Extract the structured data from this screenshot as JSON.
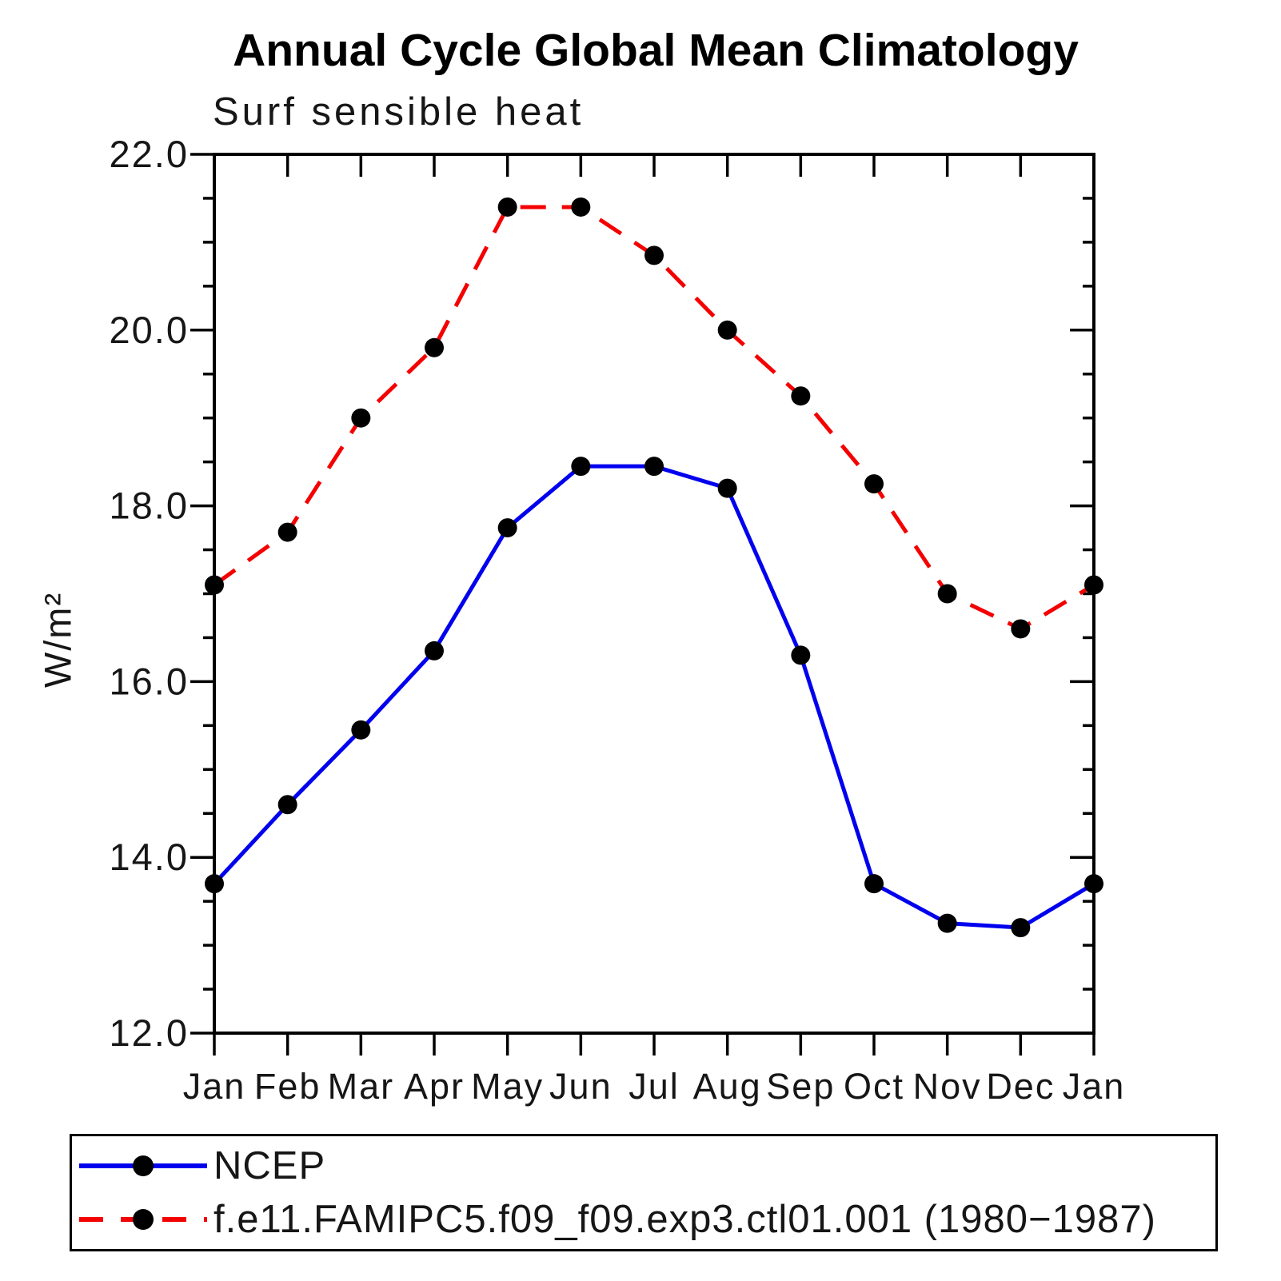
{
  "header": {
    "title": "Annual Cycle Global Mean Climatology",
    "subtitle": "Surf sensible heat"
  },
  "y_axis": {
    "title": "W/m²",
    "min": 12.0,
    "max": 22.0,
    "major_tick_step": 2.0,
    "minor_tick_step": 0.5,
    "major_tick_labels": [
      "12.0",
      "14.0",
      "16.0",
      "18.0",
      "20.0",
      "22.0"
    ]
  },
  "x_axis": {
    "tick_labels": [
      "Jan",
      "Feb",
      "Mar",
      "Apr",
      "May",
      "Jun",
      "Jul",
      "Aug",
      "Sep",
      "Oct",
      "Nov",
      "Dec",
      "Jan"
    ]
  },
  "legend": {
    "items": [
      {
        "label": "NCEP",
        "color": "#0000ee",
        "line_style": "solid",
        "marker": "filled-circle"
      },
      {
        "label": "f.e11.FAMIPC5.f09_f09.exp3.ctl01.001 (1980−1987)",
        "color": "#f40000",
        "line_style": "dashed",
        "marker": "filled-circle"
      }
    ]
  },
  "colors": {
    "ncep_line": "#0000ee",
    "model_line": "#f40000",
    "marker": "#000000",
    "axis": "#000000",
    "text": "#161616"
  },
  "chart_data": {
    "type": "line",
    "title": "Annual Cycle Global Mean Climatology",
    "subtitle": "Surf sensible heat",
    "xlabel": "",
    "ylabel": "W/m²",
    "ylim": [
      12.0,
      22.0
    ],
    "y_major_step": 2.0,
    "y_minor_step": 0.5,
    "grid": false,
    "legend_position": "bottom",
    "categories": [
      "Jan",
      "Feb",
      "Mar",
      "Apr",
      "May",
      "Jun",
      "Jul",
      "Aug",
      "Sep",
      "Oct",
      "Nov",
      "Dec",
      "Jan"
    ],
    "series": [
      {
        "name": "NCEP",
        "color": "#0000ee",
        "style": "solid",
        "marker_color": "#000000",
        "values": [
          13.7,
          14.6,
          15.45,
          16.35,
          17.75,
          18.45,
          18.45,
          18.2,
          16.3,
          13.7,
          13.25,
          13.2,
          13.7
        ]
      },
      {
        "name": "f.e11.FAMIPC5.f09_f09.exp3.ctl01.001 (1980−1987)",
        "color": "#f40000",
        "style": "dashed",
        "marker_color": "#000000",
        "values": [
          17.1,
          17.7,
          19.0,
          19.8,
          21.4,
          21.4,
          20.85,
          20.0,
          19.25,
          18.25,
          17.0,
          16.6,
          17.1
        ]
      }
    ]
  }
}
